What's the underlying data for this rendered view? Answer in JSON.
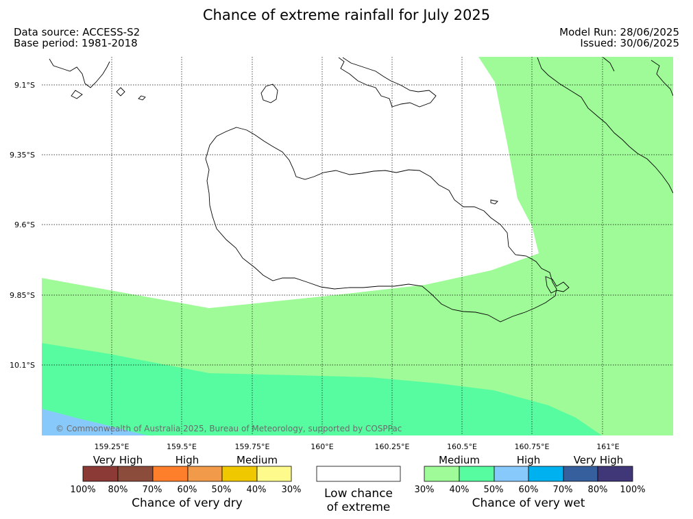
{
  "title": "Chance of extreme rainfall for July 2025",
  "meta": {
    "data_source": "Data source: ACCESS-S2",
    "base_period": "Base period: 1981-2018",
    "model_run": "Model Run: 28/06/2025",
    "issued": "Issued: 30/06/2025"
  },
  "map": {
    "lat_ticks": [
      "9.1°S",
      "9.35°S",
      "9.6°S",
      "9.85°S",
      "10.1°S"
    ],
    "lon_ticks": [
      "159.25°E",
      "159.5°E",
      "159.75°E",
      "160°E",
      "160.25°E",
      "160.5°E",
      "160.75°E",
      "161°E"
    ],
    "copyright": "© Commonwealth of Australia 2025, Bureau of Meteorology, supported by COSPPac",
    "zone_colors": {
      "low": "#ffffff",
      "wet_30_40": "#9efb97",
      "wet_40_50": "#58fca0",
      "wet_50_60": "#87c9fb"
    }
  },
  "legend": {
    "dry": {
      "category_labels": [
        "Very High",
        "High",
        "Medium"
      ],
      "colors": [
        "#8b3a35",
        "#8b4c3c",
        "#fd7f2b",
        "#f19a4a",
        "#f0c800",
        "#fffa8c"
      ],
      "percent_labels": [
        "100%",
        "80%",
        "70%",
        "60%",
        "50%",
        "40%",
        "30%"
      ],
      "title": "Chance of very dry"
    },
    "low": {
      "color": "#ffffff",
      "title_line1": "Low chance",
      "title_line2": "of extreme"
    },
    "wet": {
      "category_labels": [
        "Medium",
        "High",
        "Very High"
      ],
      "colors": [
        "#9efb97",
        "#58fca0",
        "#87c9fb",
        "#00b1ef",
        "#355f9d",
        "#3f3777"
      ],
      "percent_labels": [
        "30%",
        "40%",
        "50%",
        "60%",
        "70%",
        "80%",
        "100%"
      ],
      "title": "Chance of very wet"
    }
  }
}
